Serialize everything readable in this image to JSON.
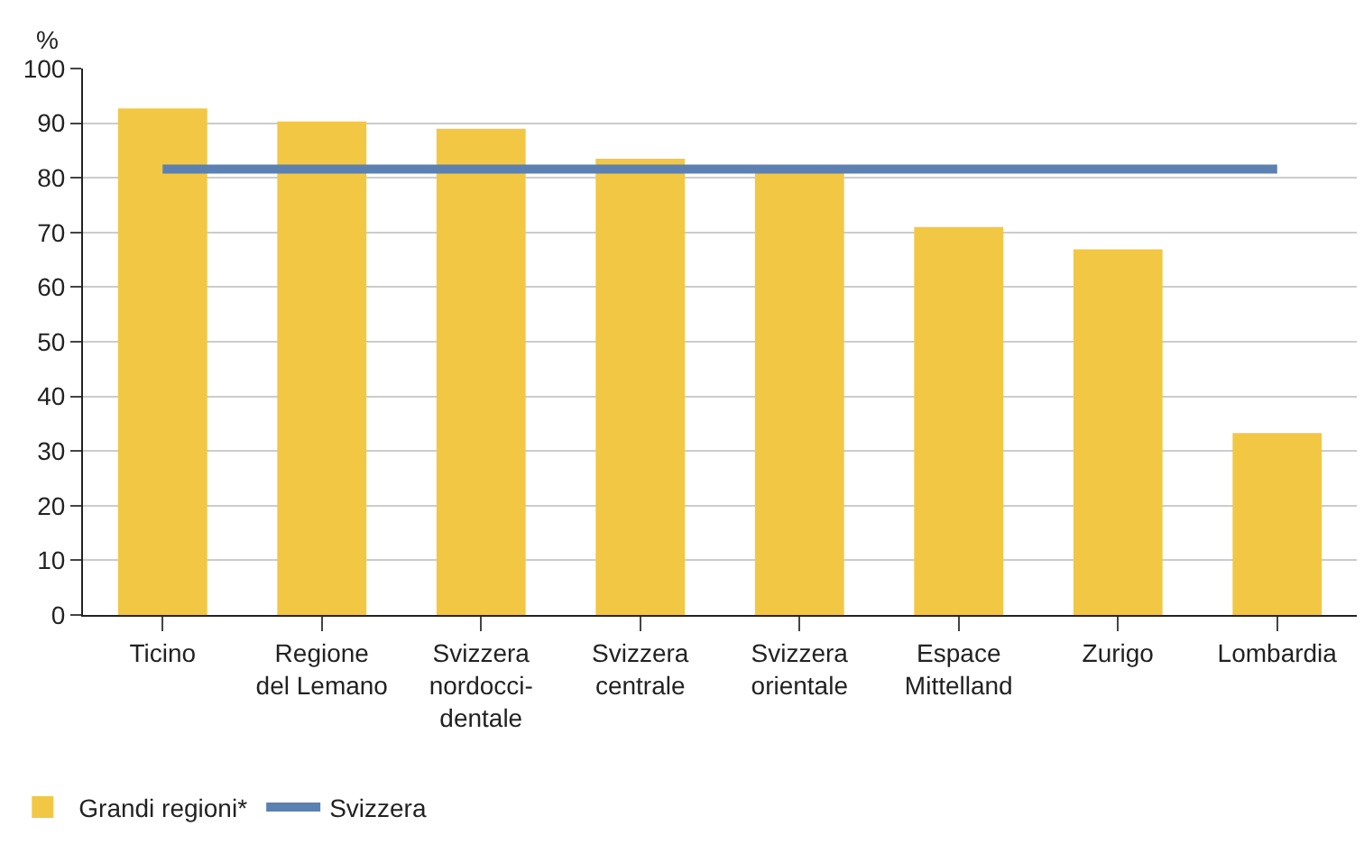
{
  "chart_data": {
    "type": "bar",
    "ylabel": "%",
    "categories": [
      "Ticino",
      "Regione\ndel Lemano",
      "Svizzera\nnordocci-\ndentale",
      "Svizzera\ncentrale",
      "Svizzera\norientale",
      "Espace\nMittelland",
      "Zurigo",
      "Lombardia"
    ],
    "series": [
      {
        "name": "Grandi regioni*",
        "color": "#f2c744",
        "values": [
          92.7,
          90.3,
          89.0,
          83.5,
          81,
          71.0,
          66.9,
          33.3
        ]
      },
      {
        "name": "Svizzera",
        "type": "line",
        "color": "#5b80b2",
        "values": [
          81.6,
          81.6,
          81.6,
          81.6,
          81.6,
          81.6,
          81.6,
          81.6
        ]
      }
    ],
    "ylim": [
      0,
      100
    ],
    "yticks": [
      0,
      10,
      20,
      30,
      40,
      50,
      60,
      70,
      80,
      90,
      100
    ],
    "grid": "y",
    "legend": "bottom left",
    "marker": "none"
  }
}
